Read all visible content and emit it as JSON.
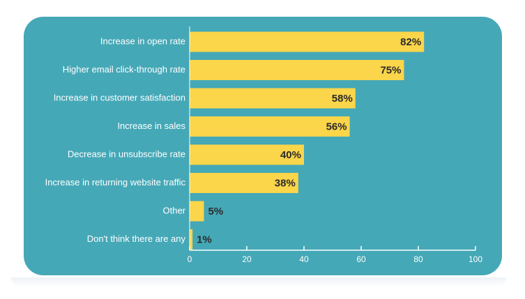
{
  "colors": {
    "background": "#45a8b7",
    "bar": "#fbd54a",
    "label_text": "#ffffff",
    "value_text": "#2b2b2b",
    "axis": "#ffffff"
  },
  "chart_data": {
    "type": "bar",
    "orientation": "horizontal",
    "title": "",
    "xlabel": "",
    "ylabel": "",
    "categories": [
      "Increase in open rate",
      "Higher email click-through rate",
      "Increase in customer satisfaction",
      "Increase in sales",
      "Decrease in unsubscribe rate",
      "Increase in returning website traffic",
      "Other",
      "Don't think there are any"
    ],
    "values": [
      82,
      75,
      58,
      56,
      40,
      38,
      5,
      1
    ],
    "value_labels": [
      "82%",
      "75%",
      "58%",
      "56%",
      "40%",
      "38%",
      "5%",
      "1%"
    ],
    "xlim": [
      0,
      100
    ],
    "xticks": [
      0,
      20,
      40,
      60,
      80,
      100
    ],
    "xtick_labels": [
      "0",
      "20",
      "40",
      "60",
      "80",
      "100"
    ],
    "grid": false,
    "legend": "none"
  }
}
